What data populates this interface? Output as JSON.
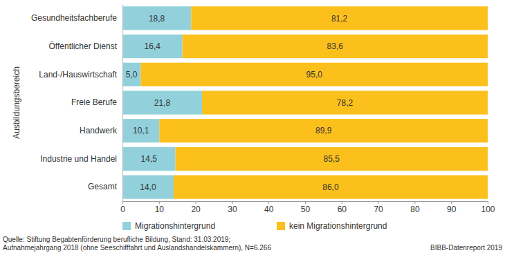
{
  "chart_data": {
    "type": "bar",
    "orientation": "horizontal",
    "stacked": true,
    "data_labels": true,
    "grid": false,
    "legend": "bottom",
    "y_label": "Ausbildungsbereich",
    "categories": [
      "Gesundheitsfachberufe",
      "Öffentlicher Dienst",
      "Land-/Hauswirtschaft",
      "Freie Berufe",
      "Handwerk",
      "Industrie und Handel",
      "Gesamt"
    ],
    "series": [
      {
        "name": "Migrationshintergrund",
        "color": "#92d1dc",
        "values": [
          18.8,
          16.4,
          5.0,
          21.8,
          10.1,
          14.5,
          14.0
        ],
        "value_labels": [
          "18,8",
          "16,4",
          "5,0",
          "21,8",
          "10,1",
          "14,5",
          "14,0"
        ]
      },
      {
        "name": "kein Migrationshintergrund",
        "color": "#fcc01c",
        "values": [
          81.2,
          83.6,
          95.0,
          78.2,
          89.9,
          85.5,
          86.0
        ],
        "value_labels": [
          "81,2",
          "83,6",
          "95,0",
          "78,2",
          "89,9",
          "85,5",
          "86,0"
        ]
      }
    ],
    "xlim": [
      0,
      100
    ],
    "xticks": [
      0,
      10,
      20,
      30,
      40,
      50,
      60,
      70,
      80,
      90,
      100
    ],
    "source": [
      "Quelle: Stiftung Begabtenförderung berufliche Bildung, Stand: 31.03.2019;",
      "Aufnahmejahrgang 2018 (ohne Seeschifffahrt und Auslandshandelskammern), N=6.266"
    ],
    "credit": "BIBB-Datenreport 2019"
  }
}
